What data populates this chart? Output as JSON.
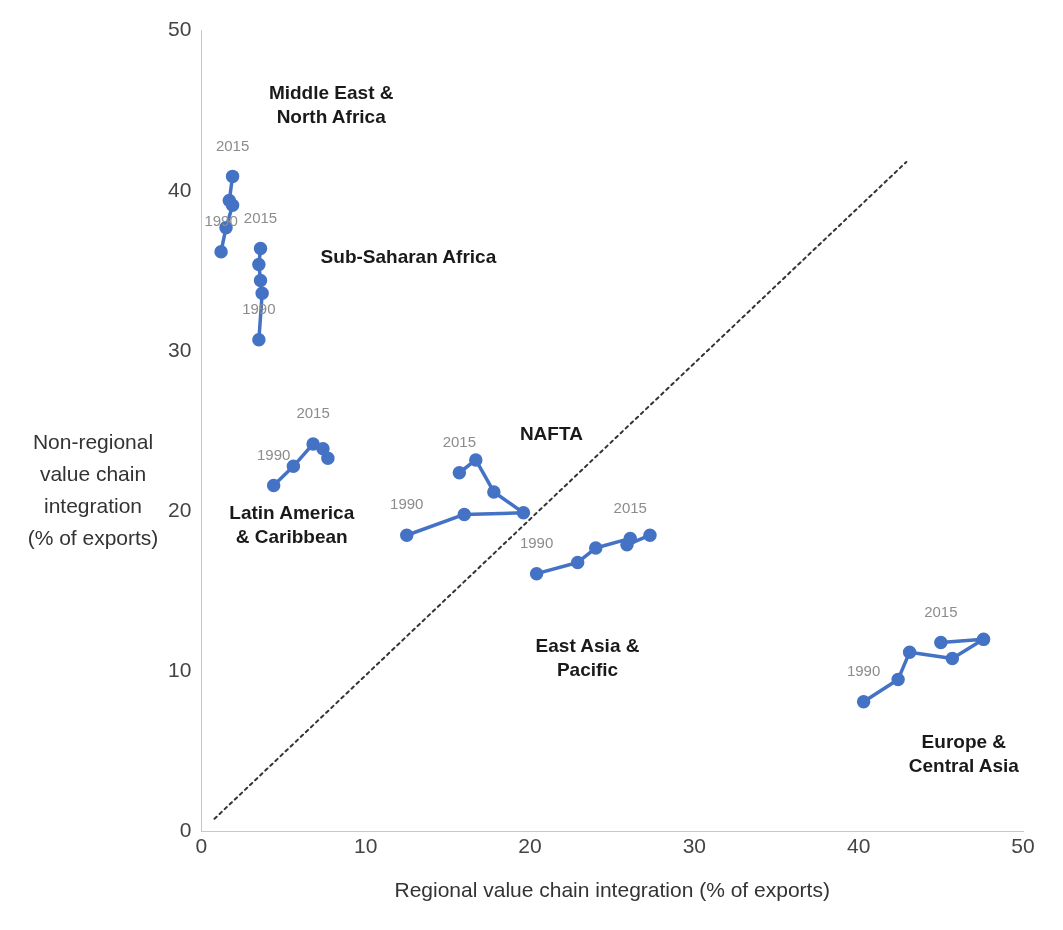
{
  "chart_data": {
    "type": "line",
    "xlabel": "Regional value chain integration (% of exports)",
    "ylabel": "Non-regional\nvalue chain\nintegration\n(% of exports)",
    "xlim": [
      0,
      50
    ],
    "xticks": [
      0,
      10,
      20,
      30,
      40,
      50
    ],
    "ylim": [
      0,
      50
    ],
    "yticks": [
      0,
      10,
      20,
      30,
      40,
      50
    ],
    "grid": false,
    "legend": false,
    "marker": "circle",
    "series": [
      {
        "name": "Middle East &\nNorth Africa",
        "color": "#4472c4",
        "x": [
          1.2,
          1.5,
          1.9,
          1.7,
          1.9
        ],
        "values": [
          36.2,
          37.7,
          39.1,
          39.4,
          40.9
        ]
      },
      {
        "name": "Sub-Saharan Africa",
        "color": "#4472c4",
        "x": [
          3.5,
          3.7,
          3.6,
          3.5,
          3.6
        ],
        "values": [
          30.7,
          33.6,
          34.4,
          35.4,
          36.4
        ]
      },
      {
        "name": "Latin America\n& Caribbean",
        "color": "#4472c4",
        "x": [
          4.4,
          5.6,
          6.8,
          7.4,
          7.7
        ],
        "values": [
          21.6,
          22.8,
          24.2,
          23.9,
          23.3
        ]
      },
      {
        "name": "NAFTA",
        "color": "#4472c4",
        "x": [
          12.5,
          16.0,
          19.6,
          17.8,
          16.7,
          15.7
        ],
        "values": [
          18.5,
          19.8,
          19.9,
          21.2,
          23.2,
          22.4
        ]
      },
      {
        "name": "East Asia &\nPacific",
        "color": "#4472c4",
        "x": [
          20.4,
          22.9,
          24.0,
          26.1,
          25.9,
          27.3
        ],
        "values": [
          16.1,
          16.8,
          17.7,
          18.3,
          17.9,
          18.5
        ]
      },
      {
        "name": "Europe &\nCentral Asia",
        "color": "#4472c4",
        "x": [
          40.3,
          42.4,
          43.1,
          45.7,
          47.6,
          45.0
        ],
        "values": [
          8.1,
          9.5,
          11.2,
          10.8,
          12.0,
          11.8
        ]
      },
      {
        "type": "line",
        "color": "#333333",
        "line_style": "dotted",
        "marker": "none",
        "x": [
          0.8,
          42.9
        ],
        "values": [
          0.8,
          41.8
        ]
      }
    ],
    "annotations": [
      {
        "text": "2015",
        "x": 1.9,
        "y": 40.9
      },
      {
        "text": "1990",
        "x": 1.2,
        "y": 36.2
      },
      {
        "text": "2015",
        "x": 3.6,
        "y": 36.4
      },
      {
        "text": "1990",
        "x": 3.5,
        "y": 30.7
      },
      {
        "text": "1990",
        "x": 4.4,
        "y": 21.6
      },
      {
        "text": "2015",
        "x": 6.8,
        "y": 24.2
      },
      {
        "text": "2015",
        "x": 15.7,
        "y": 22.4
      },
      {
        "text": "1990",
        "x": 12.5,
        "y": 18.5
      },
      {
        "text": "1990",
        "x": 20.4,
        "y": 16.1
      },
      {
        "text": "2015",
        "x": 26.1,
        "y": 18.3
      },
      {
        "text": "1990",
        "x": 40.3,
        "y": 8.1
      },
      {
        "text": "2015",
        "x": 45.0,
        "y": 11.8
      }
    ]
  }
}
